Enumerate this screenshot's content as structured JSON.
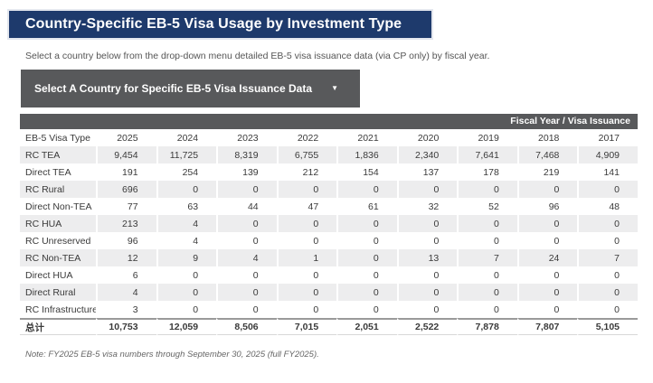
{
  "colors": {
    "title_bar_bg": "#1e3a6c",
    "bar_gray": "#58595b",
    "stripe_gray": "#ededee",
    "text": "#3a3a3a"
  },
  "header": {
    "title": "Country-Specific EB-5 Visa Usage by Investment Type",
    "subtitle": "Select a country below from the drop-down menu detailed EB-5 visa issuance data (via CP only) by fiscal year."
  },
  "dropdown": {
    "label": "Select A Country for Specific EB-5 Visa Issuance Data",
    "caret": "▼"
  },
  "table": {
    "banner": "Fiscal Year / Visa Issuance",
    "type_column_header": "EB-5 Visa Type",
    "year_columns": [
      "2025",
      "2024",
      "2023",
      "2022",
      "2021",
      "2020",
      "2019",
      "2018",
      "2017"
    ],
    "rows": [
      {
        "label": "RC TEA",
        "values": [
          "9,454",
          "11,725",
          "8,319",
          "6,755",
          "1,836",
          "2,340",
          "7,641",
          "7,468",
          "4,909"
        ]
      },
      {
        "label": "Direct TEA",
        "values": [
          "191",
          "254",
          "139",
          "212",
          "154",
          "137",
          "178",
          "219",
          "141"
        ]
      },
      {
        "label": "RC Rural",
        "values": [
          "696",
          "0",
          "0",
          "0",
          "0",
          "0",
          "0",
          "0",
          "0"
        ]
      },
      {
        "label": "Direct Non-TEA",
        "values": [
          "77",
          "63",
          "44",
          "47",
          "61",
          "32",
          "52",
          "96",
          "48"
        ]
      },
      {
        "label": "RC HUA",
        "values": [
          "213",
          "4",
          "0",
          "0",
          "0",
          "0",
          "0",
          "0",
          "0"
        ]
      },
      {
        "label": "RC Unreserved",
        "values": [
          "96",
          "4",
          "0",
          "0",
          "0",
          "0",
          "0",
          "0",
          "0"
        ]
      },
      {
        "label": "RC Non-TEA",
        "values": [
          "12",
          "9",
          "4",
          "1",
          "0",
          "13",
          "7",
          "24",
          "7"
        ]
      },
      {
        "label": "Direct HUA",
        "values": [
          "6",
          "0",
          "0",
          "0",
          "0",
          "0",
          "0",
          "0",
          "0"
        ]
      },
      {
        "label": "Direct Rural",
        "values": [
          "4",
          "0",
          "0",
          "0",
          "0",
          "0",
          "0",
          "0",
          "0"
        ]
      },
      {
        "label": "RC Infrastructure",
        "values": [
          "3",
          "0",
          "0",
          "0",
          "0",
          "0",
          "0",
          "0",
          "0"
        ]
      }
    ],
    "total_row": {
      "label": "总计",
      "values": [
        "10,753",
        "12,059",
        "8,506",
        "7,015",
        "2,051",
        "2,522",
        "7,878",
        "7,807",
        "5,105"
      ]
    }
  },
  "note": "Note: FY2025 EB-5 visa numbers through September 30, 2025 (full FY2025)."
}
